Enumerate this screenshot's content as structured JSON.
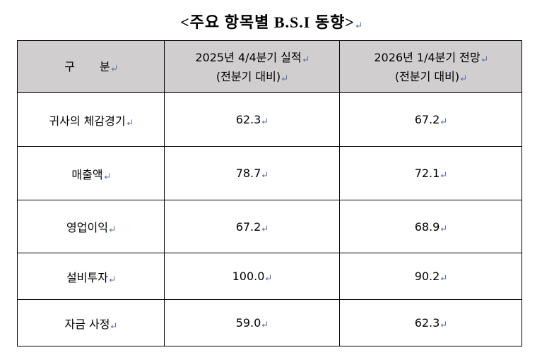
{
  "title": "<주요 항목별 B.S.I 동향>",
  "table": {
    "header": [
      [
        "구 분"
      ],
      [
        "2025년 4/4분기 실적",
        "(전분기 대비)"
      ],
      [
        "2026년 1/4분기 전망",
        "(전분기 대비)"
      ]
    ],
    "rows": [
      [
        "귀사의 체감경기",
        "62.3",
        "67.2"
      ],
      [
        "매출액",
        "78.7",
        "72.1"
      ],
      [
        "영업이익",
        "67.2",
        "68.9"
      ],
      [
        "설비투자",
        "100.0",
        "90.2"
      ],
      [
        "자금 사정",
        "59.0",
        "62.3"
      ]
    ]
  }
}
